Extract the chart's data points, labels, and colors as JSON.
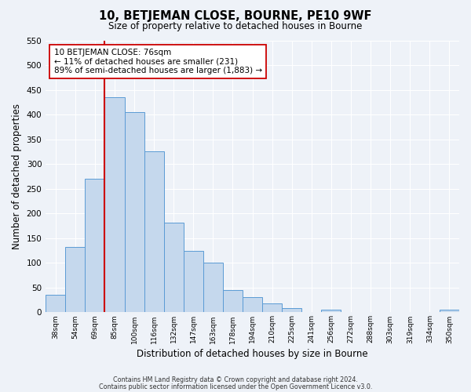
{
  "title": "10, BETJEMAN CLOSE, BOURNE, PE10 9WF",
  "subtitle": "Size of property relative to detached houses in Bourne",
  "xlabel": "Distribution of detached houses by size in Bourne",
  "ylabel": "Number of detached properties",
  "bar_labels": [
    "38sqm",
    "54sqm",
    "69sqm",
    "85sqm",
    "100sqm",
    "116sqm",
    "132sqm",
    "147sqm",
    "163sqm",
    "178sqm",
    "194sqm",
    "210sqm",
    "225sqm",
    "241sqm",
    "256sqm",
    "272sqm",
    "288sqm",
    "303sqm",
    "319sqm",
    "334sqm",
    "350sqm"
  ],
  "bar_values": [
    35,
    133,
    270,
    435,
    405,
    325,
    182,
    125,
    100,
    45,
    30,
    18,
    8,
    0,
    5,
    0,
    0,
    0,
    0,
    0,
    5
  ],
  "bar_color": "#c5d8ed",
  "bar_edge_color": "#5b9bd5",
  "ylim": [
    0,
    550
  ],
  "yticks": [
    0,
    50,
    100,
    150,
    200,
    250,
    300,
    350,
    400,
    450,
    500,
    550
  ],
  "vline_color": "#cc0000",
  "annotation_title": "10 BETJEMAN CLOSE: 76sqm",
  "annotation_line1": "← 11% of detached houses are smaller (231)",
  "annotation_line2": "89% of semi-detached houses are larger (1,883) →",
  "annotation_box_color": "#ffffff",
  "annotation_box_edge": "#cc0000",
  "footer1": "Contains HM Land Registry data © Crown copyright and database right 2024.",
  "footer2": "Contains public sector information licensed under the Open Government Licence v3.0.",
  "background_color": "#eef2f8",
  "grid_color": "#ffffff"
}
